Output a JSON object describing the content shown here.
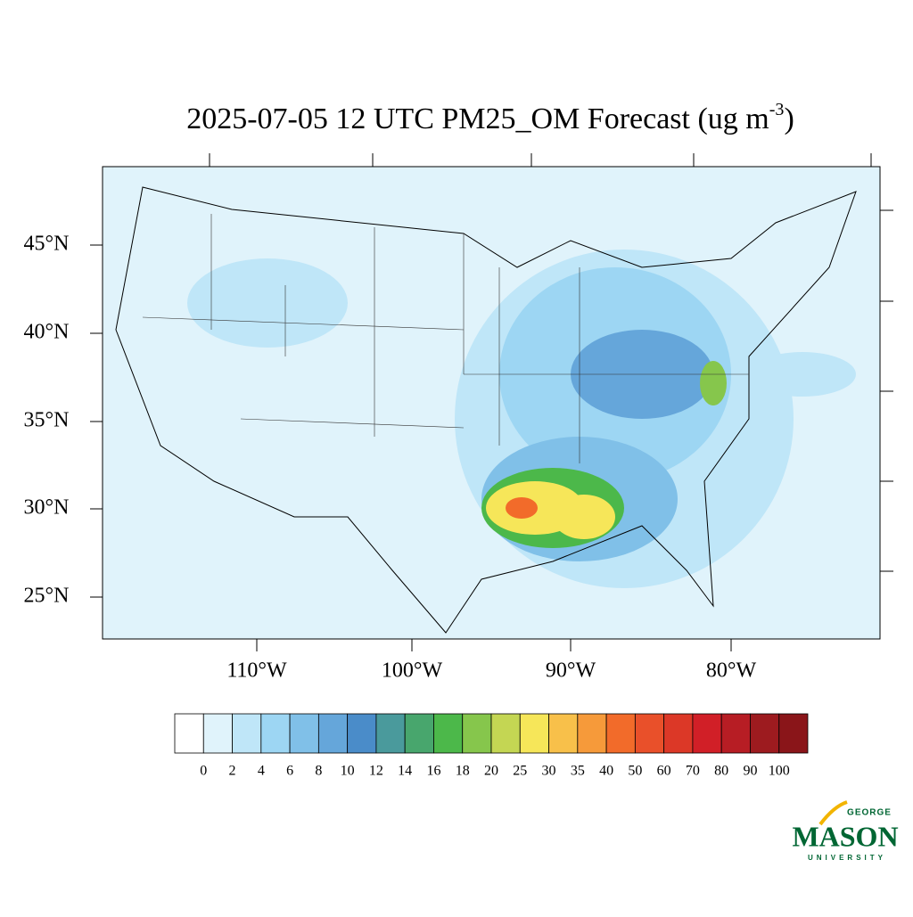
{
  "title": {
    "text": "2025-07-05 12 UTC PM25_OM Forecast (ug m",
    "superscript": "-3",
    "close": ")"
  },
  "lat_labels": [
    "45°N",
    "40°N",
    "35°N",
    "30°N",
    "25°N"
  ],
  "lon_labels": [
    "110°W",
    "100°W",
    "90°W",
    "80°W"
  ],
  "colorbar": {
    "levels": [
      0,
      2,
      4,
      6,
      8,
      10,
      12,
      14,
      16,
      18,
      20,
      25,
      30,
      35,
      40,
      50,
      60,
      70,
      80,
      90,
      100
    ],
    "colors": [
      "#ffffff",
      "#e0f3fb",
      "#bfe6f8",
      "#9dd6f3",
      "#80c0e8",
      "#65a6da",
      "#4a8cc9",
      "#4a9a9c",
      "#48a66d",
      "#4cb84a",
      "#86c64c",
      "#c4d653",
      "#f6e659",
      "#f8c04a",
      "#f69a3a",
      "#f26b2a",
      "#e9502a",
      "#dc3827",
      "#d11f27",
      "#b71d24",
      "#9d1b1f",
      "#8a1519"
    ]
  },
  "logo": {
    "top": "GEORGE",
    "main": "MASON",
    "bottom": "UNIVERSITY"
  }
}
